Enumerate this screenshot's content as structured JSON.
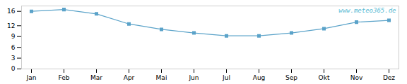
{
  "chart_data": {
    "type": "line",
    "categories": [
      "Jan",
      "Feb",
      "Mar",
      "Apr",
      "Mai",
      "Jun",
      "Jul",
      "Aug",
      "Sep",
      "Okt",
      "Nov",
      "Dez"
    ],
    "values": [
      16.0,
      16.5,
      15.3,
      12.5,
      11.0,
      10.0,
      9.2,
      9.2,
      10.0,
      11.2,
      13.0,
      13.5
    ],
    "color": "#5ba3c9",
    "marker": "square",
    "ylim": [
      0,
      17.5
    ],
    "yticks": [
      0,
      3,
      6,
      9,
      12,
      16
    ],
    "grid": false,
    "annotations": [
      {
        "text": "www.meteo365.de",
        "color": "#5bbbd4"
      }
    ]
  }
}
